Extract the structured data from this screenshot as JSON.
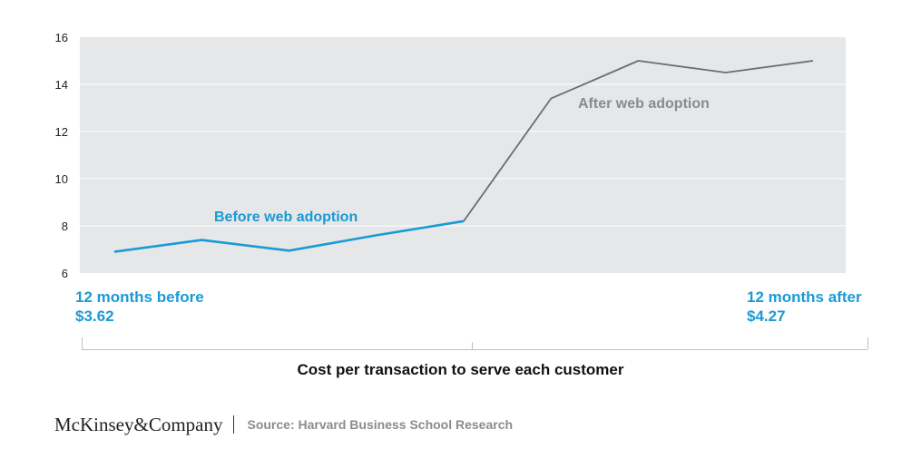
{
  "chart_data": {
    "type": "line",
    "title": "",
    "xlabel": "Cost per transaction to serve each customer",
    "ylabel": "",
    "ylim": [
      6,
      16
    ],
    "y_ticks": [
      "6",
      "8",
      "10",
      "12",
      "14",
      "16"
    ],
    "grid": true,
    "background_color": "#e6e7e8",
    "x": [
      0,
      1,
      2,
      3,
      4,
      5,
      6,
      7,
      8
    ],
    "series": [
      {
        "name": "Before web adoption",
        "color": "#1a9ad6",
        "x": [
          0,
          1,
          2,
          3,
          4
        ],
        "values": [
          6.9,
          7.4,
          6.95,
          7.6,
          8.2
        ]
      },
      {
        "name": "After web adoption",
        "color": "#6d6e71",
        "x": [
          4,
          5,
          6,
          7,
          8
        ],
        "values": [
          8.2,
          13.4,
          15.0,
          14.5,
          15.0
        ]
      }
    ],
    "endpoints": {
      "left": {
        "label": "12 months before",
        "value": "$3.62"
      },
      "right": {
        "label": "12 months after",
        "value": "$4.27"
      }
    }
  },
  "footer": {
    "logo_text": "McKinsey&Company",
    "source": "Source: Harvard Business School Research"
  }
}
